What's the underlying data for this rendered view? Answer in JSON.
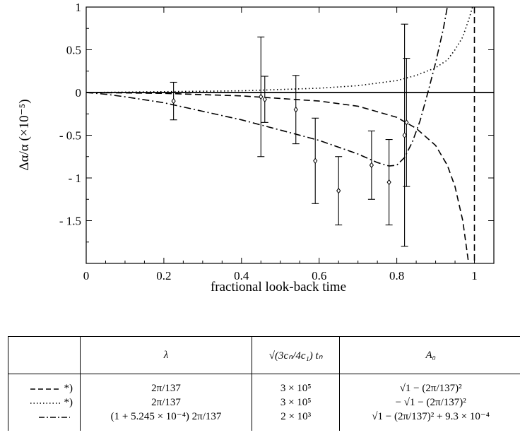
{
  "chart_data": {
    "type": "line",
    "xlabel": "fractional look-back time",
    "ylabel": "Δα/α  (×10⁻⁵)",
    "xlim": [
      0,
      1.05
    ],
    "ylim": [
      -2.0,
      1.0
    ],
    "x_ticks": [
      "0",
      "0.2",
      "0.4",
      "0.6",
      "0.8",
      "1"
    ],
    "y_ticks": [
      "1",
      "0.5",
      "0",
      "- 0.5",
      "- 1",
      "- 1.5"
    ],
    "grid": false,
    "series": [
      {
        "style": "dashed",
        "points": [
          [
            0,
            0
          ],
          [
            0.2,
            -0.01
          ],
          [
            0.4,
            -0.04
          ],
          [
            0.6,
            -0.1
          ],
          [
            0.7,
            -0.16
          ],
          [
            0.8,
            -0.29
          ],
          [
            0.85,
            -0.42
          ],
          [
            0.9,
            -0.62
          ],
          [
            0.93,
            -0.85
          ],
          [
            0.95,
            -1.1
          ],
          [
            0.97,
            -1.5
          ],
          [
            0.985,
            -2.0
          ]
        ]
      },
      {
        "style": "dashed",
        "points": [
          [
            1.0,
            1.0
          ],
          [
            1.0,
            -2.0
          ]
        ]
      },
      {
        "style": "dotted",
        "points": [
          [
            0,
            0
          ],
          [
            0.2,
            0.01
          ],
          [
            0.4,
            0.02
          ],
          [
            0.6,
            0.05
          ],
          [
            0.7,
            0.08
          ],
          [
            0.8,
            0.14
          ],
          [
            0.85,
            0.2
          ],
          [
            0.9,
            0.29
          ],
          [
            0.93,
            0.38
          ],
          [
            0.95,
            0.5
          ],
          [
            0.97,
            0.65
          ],
          [
            0.985,
            0.85
          ],
          [
            0.995,
            1.0
          ]
        ]
      },
      {
        "style": "dashdot",
        "points": [
          [
            0,
            0
          ],
          [
            0.05,
            -0.02
          ],
          [
            0.1,
            -0.05
          ],
          [
            0.2,
            -0.12
          ],
          [
            0.3,
            -0.22
          ],
          [
            0.4,
            -0.32
          ],
          [
            0.5,
            -0.44
          ],
          [
            0.6,
            -0.56
          ],
          [
            0.7,
            -0.72
          ],
          [
            0.75,
            -0.82
          ],
          [
            0.78,
            -0.86
          ],
          [
            0.8,
            -0.85
          ],
          [
            0.82,
            -0.76
          ],
          [
            0.84,
            -0.58
          ],
          [
            0.86,
            -0.33
          ],
          [
            0.88,
            0.0
          ],
          [
            0.9,
            0.35
          ],
          [
            0.92,
            0.75
          ],
          [
            0.93,
            1.0
          ]
        ]
      },
      {
        "style": "solid",
        "points": [
          [
            0,
            0
          ],
          [
            1.05,
            0
          ]
        ]
      }
    ],
    "error_points": [
      {
        "x": 0.225,
        "y": -0.1,
        "ylow": -0.32,
        "yhigh": 0.12
      },
      {
        "x": 0.45,
        "y": -0.05,
        "ylow": -0.75,
        "yhigh": 0.65
      },
      {
        "x": 0.46,
        "y": -0.08,
        "ylow": -0.35,
        "yhigh": 0.19
      },
      {
        "x": 0.54,
        "y": -0.2,
        "ylow": -0.6,
        "yhigh": 0.2
      },
      {
        "x": 0.59,
        "y": -0.8,
        "ylow": -1.3,
        "yhigh": -0.3
      },
      {
        "x": 0.65,
        "y": -1.15,
        "ylow": -1.55,
        "yhigh": -0.75
      },
      {
        "x": 0.735,
        "y": -0.85,
        "ylow": -1.25,
        "yhigh": -0.45
      },
      {
        "x": 0.78,
        "y": -1.05,
        "ylow": -1.55,
        "yhigh": -0.55
      },
      {
        "x": 0.82,
        "y": -0.5,
        "ylow": -1.8,
        "yhigh": 0.8
      },
      {
        "x": 0.825,
        "y": -0.35,
        "ylow": -1.1,
        "yhigh": 0.4
      }
    ]
  },
  "table": {
    "headers": [
      "",
      "λ",
      "√(3cₙ/4c₁) tₙ",
      "A₀"
    ],
    "rows": [
      {
        "style_label": "*)",
        "line": "dashed",
        "lambda": "2π/137",
        "tn": "3 × 10⁵",
        "a0": "√1 − (2π/137)²"
      },
      {
        "style_label": "*)",
        "line": "dotted",
        "lambda": "2π/137",
        "tn": "3 × 10⁵",
        "a0": "− √1 − (2π/137)²"
      },
      {
        "style_label": "",
        "line": "dashdot",
        "lambda": "(1 + 5.245 × 10⁻⁴) 2π/137",
        "tn": "2 × 10³",
        "a0": "√1 − (2π/137)²  + 9.3 × 10⁻⁴"
      }
    ]
  }
}
